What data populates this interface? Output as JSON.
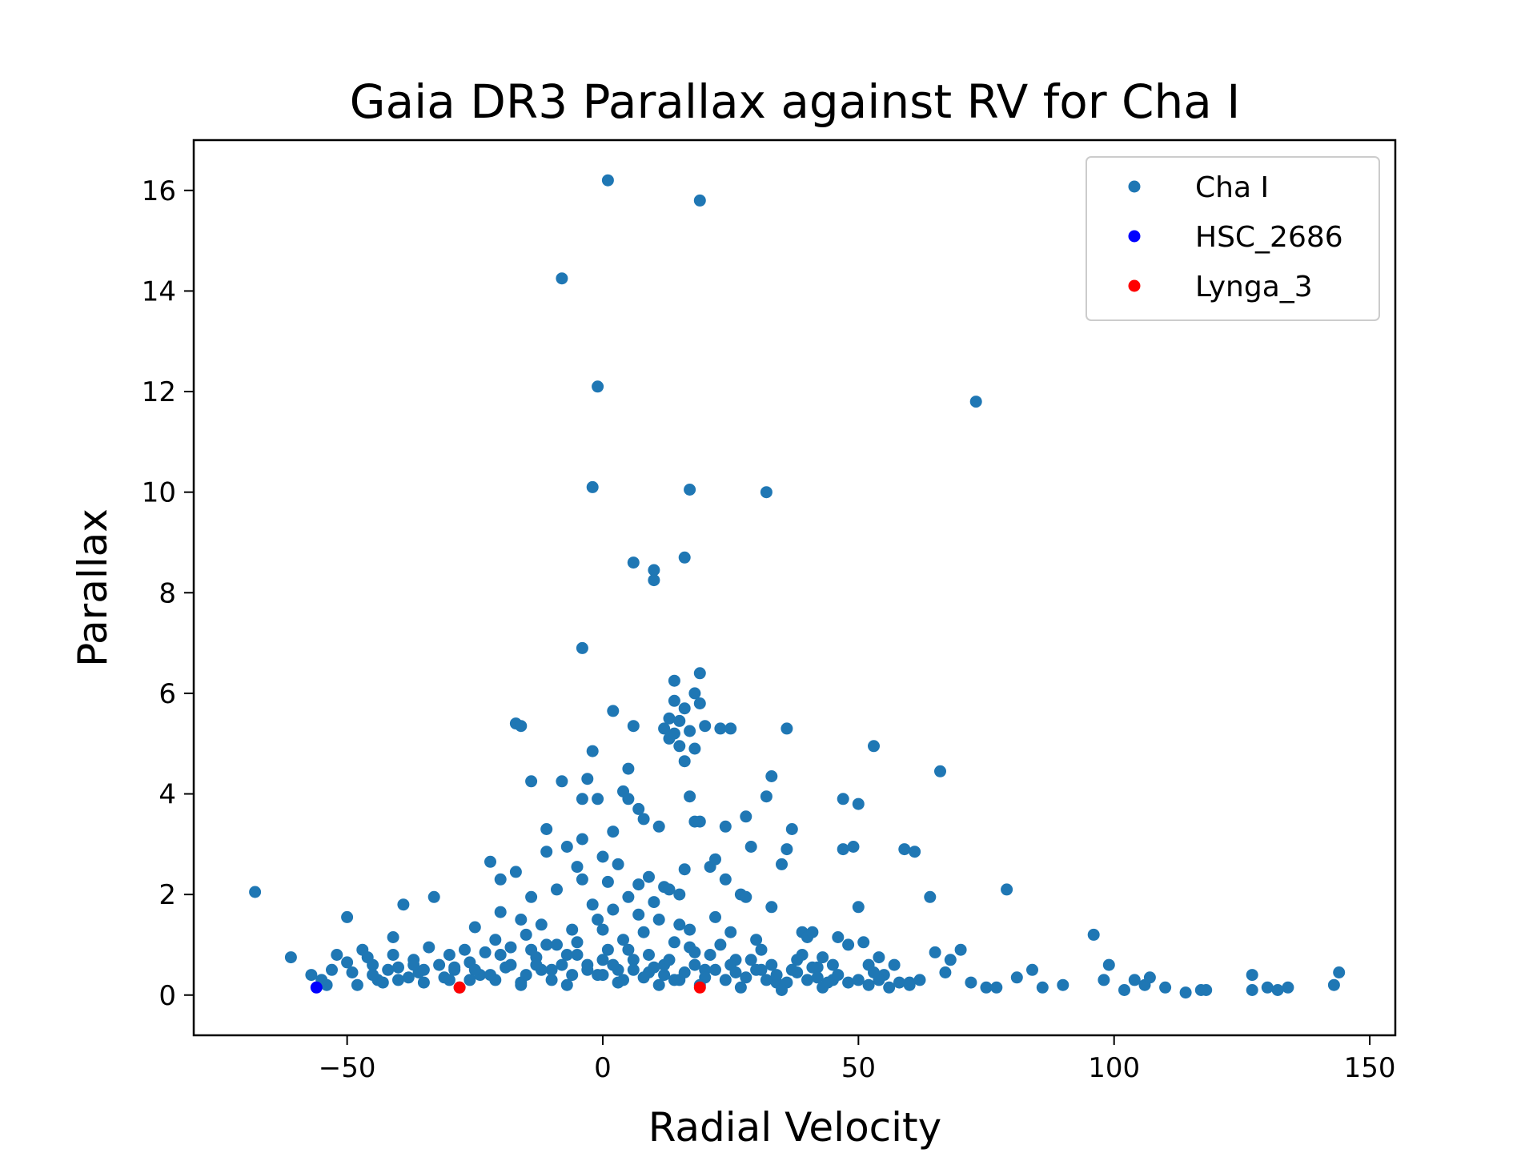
{
  "chart_data": {
    "type": "scatter",
    "title": "Gaia DR3 Parallax against RV for Cha I",
    "xlabel": "Radial Velocity",
    "ylabel": "Parallax",
    "xlim": [
      -80,
      155
    ],
    "ylim": [
      -0.8,
      17
    ],
    "xticks": [
      -50,
      0,
      50,
      100,
      150
    ],
    "xtick_labels": [
      "−50",
      "0",
      "50",
      "100",
      "150"
    ],
    "yticks": [
      0,
      2,
      4,
      6,
      8,
      10,
      12,
      14,
      16
    ],
    "ytick_labels": [
      "0",
      "2",
      "4",
      "6",
      "8",
      "10",
      "12",
      "14",
      "16"
    ],
    "grid": false,
    "legend_position": "top-right",
    "series": [
      {
        "name": "Cha I",
        "color": "#1f77b4",
        "points": [
          [
            -68,
            2.05
          ],
          [
            -61,
            0.75
          ],
          [
            -57,
            0.4
          ],
          [
            -54,
            0.2
          ],
          [
            -53,
            0.5
          ],
          [
            -52,
            0.8
          ],
          [
            -50,
            1.55
          ],
          [
            -50,
            0.65
          ],
          [
            -49,
            0.45
          ],
          [
            -48,
            0.2
          ],
          [
            -47,
            0.9
          ],
          [
            -46,
            0.75
          ],
          [
            -45,
            0.6
          ],
          [
            -44,
            0.3
          ],
          [
            -43,
            0.25
          ],
          [
            -42,
            0.5
          ],
          [
            -41,
            1.15
          ],
          [
            -41,
            0.8
          ],
          [
            -40,
            0.55
          ],
          [
            -39,
            1.8
          ],
          [
            -38,
            0.35
          ],
          [
            -37,
            0.7
          ],
          [
            -36,
            0.45
          ],
          [
            -35,
            0.25
          ],
          [
            -34,
            0.95
          ],
          [
            -33,
            1.95
          ],
          [
            -32,
            0.6
          ],
          [
            -31,
            0.35
          ],
          [
            -30,
            0.8
          ],
          [
            -29,
            0.5
          ],
          [
            -28,
            0.15
          ],
          [
            -27,
            0.9
          ],
          [
            -26,
            0.65
          ],
          [
            -25,
            1.35
          ],
          [
            -24,
            0.4
          ],
          [
            -23,
            0.85
          ],
          [
            -22,
            2.65
          ],
          [
            -21,
            1.1
          ],
          [
            -21,
            0.3
          ],
          [
            -20,
            2.3
          ],
          [
            -20,
            1.65
          ],
          [
            -19,
            0.55
          ],
          [
            -18,
            0.95
          ],
          [
            -17,
            5.4
          ],
          [
            -17,
            2.45
          ],
          [
            -16,
            5.35
          ],
          [
            -16,
            1.5
          ],
          [
            -16,
            0.25
          ],
          [
            -15,
            1.2
          ],
          [
            -14,
            4.25
          ],
          [
            -14,
            1.95
          ],
          [
            -13,
            0.75
          ],
          [
            -12,
            1.4
          ],
          [
            -11,
            3.3
          ],
          [
            -11,
            2.85
          ],
          [
            -11,
            1.0
          ],
          [
            -10,
            0.5
          ],
          [
            -9,
            2.1
          ],
          [
            -8,
            14.25
          ],
          [
            -8,
            4.25
          ],
          [
            -7,
            2.95
          ],
          [
            -7,
            0.8
          ],
          [
            -6,
            1.3
          ],
          [
            -5,
            2.55
          ],
          [
            -5,
            1.05
          ],
          [
            -4,
            6.9
          ],
          [
            -4,
            3.9
          ],
          [
            -4,
            3.1
          ],
          [
            -4,
            2.3
          ],
          [
            -3,
            4.3
          ],
          [
            -3,
            0.6
          ],
          [
            -2,
            10.1
          ],
          [
            -2,
            4.85
          ],
          [
            -2,
            1.8
          ],
          [
            -1,
            12.1
          ],
          [
            -1,
            3.9
          ],
          [
            -1,
            0.4
          ],
          [
            0,
            2.75
          ],
          [
            0,
            1.3
          ],
          [
            1,
            16.2
          ],
          [
            1,
            2.25
          ],
          [
            1,
            0.9
          ],
          [
            2,
            5.65
          ],
          [
            2,
            3.25
          ],
          [
            2,
            1.7
          ],
          [
            3,
            2.6
          ],
          [
            3,
            0.5
          ],
          [
            4,
            4.05
          ],
          [
            4,
            1.1
          ],
          [
            5,
            4.5
          ],
          [
            5,
            3.9
          ],
          [
            5,
            1.95
          ],
          [
            6,
            8.6
          ],
          [
            6,
            5.35
          ],
          [
            6,
            0.7
          ],
          [
            7,
            3.7
          ],
          [
            7,
            2.2
          ],
          [
            8,
            3.5
          ],
          [
            8,
            1.25
          ],
          [
            9,
            2.35
          ],
          [
            9,
            0.45
          ],
          [
            10,
            8.45
          ],
          [
            10,
            8.25
          ],
          [
            10,
            1.85
          ],
          [
            11,
            3.35
          ],
          [
            11,
            1.5
          ],
          [
            12,
            5.3
          ],
          [
            12,
            2.15
          ],
          [
            12,
            0.6
          ],
          [
            13,
            5.5
          ],
          [
            13,
            5.1
          ],
          [
            13,
            2.1
          ],
          [
            14,
            6.25
          ],
          [
            14,
            5.85
          ],
          [
            14,
            5.2
          ],
          [
            14,
            1.05
          ],
          [
            15,
            5.45
          ],
          [
            15,
            4.95
          ],
          [
            15,
            2.0
          ],
          [
            15,
            0.3
          ],
          [
            16,
            8.7
          ],
          [
            16,
            5.7
          ],
          [
            16,
            4.65
          ],
          [
            16,
            2.5
          ],
          [
            17,
            10.05
          ],
          [
            17,
            5.25
          ],
          [
            17,
            3.95
          ],
          [
            17,
            1.3
          ],
          [
            18,
            6.0
          ],
          [
            18,
            4.9
          ],
          [
            18,
            3.45
          ],
          [
            18,
            0.85
          ],
          [
            19,
            15.8
          ],
          [
            19,
            6.4
          ],
          [
            19,
            5.8
          ],
          [
            19,
            3.45
          ],
          [
            20,
            5.35
          ],
          [
            20,
            0.5
          ],
          [
            21,
            2.55
          ],
          [
            22,
            1.55
          ],
          [
            22,
            2.7
          ],
          [
            23,
            5.3
          ],
          [
            24,
            3.35
          ],
          [
            24,
            2.3
          ],
          [
            25,
            5.3
          ],
          [
            25,
            1.25
          ],
          [
            26,
            0.7
          ],
          [
            27,
            2.0
          ],
          [
            28,
            3.55
          ],
          [
            28,
            1.95
          ],
          [
            29,
            2.95
          ],
          [
            30,
            1.1
          ],
          [
            31,
            0.5
          ],
          [
            32,
            10.0
          ],
          [
            32,
            3.95
          ],
          [
            33,
            1.75
          ],
          [
            33,
            4.35
          ],
          [
            34,
            0.25
          ],
          [
            35,
            2.6
          ],
          [
            36,
            5.3
          ],
          [
            36,
            2.9
          ],
          [
            37,
            3.3
          ],
          [
            38,
            0.7
          ],
          [
            39,
            1.25
          ],
          [
            40,
            1.15
          ],
          [
            41,
            1.25
          ],
          [
            42,
            0.55
          ],
          [
            43,
            0.75
          ],
          [
            45,
            0.3
          ],
          [
            46,
            1.15
          ],
          [
            47,
            2.9
          ],
          [
            47,
            3.9
          ],
          [
            48,
            1.0
          ],
          [
            49,
            2.95
          ],
          [
            50,
            3.8
          ],
          [
            50,
            1.75
          ],
          [
            51,
            1.05
          ],
          [
            52,
            0.6
          ],
          [
            53,
            4.95
          ],
          [
            54,
            0.75
          ],
          [
            55,
            0.4
          ],
          [
            57,
            0.6
          ],
          [
            59,
            2.9
          ],
          [
            60,
            0.25
          ],
          [
            61,
            2.85
          ],
          [
            62,
            0.3
          ],
          [
            64,
            1.95
          ],
          [
            65,
            0.85
          ],
          [
            66,
            4.45
          ],
          [
            67,
            0.45
          ],
          [
            68,
            0.7
          ],
          [
            70,
            0.9
          ],
          [
            72,
            0.25
          ],
          [
            73,
            11.8
          ],
          [
            75,
            0.15
          ],
          [
            77,
            0.15
          ],
          [
            79,
            2.1
          ],
          [
            81,
            0.35
          ],
          [
            84,
            0.5
          ],
          [
            86,
            0.15
          ],
          [
            90,
            0.2
          ],
          [
            96,
            1.2
          ],
          [
            98,
            0.3
          ],
          [
            99,
            0.6
          ],
          [
            102,
            0.1
          ],
          [
            104,
            0.3
          ],
          [
            106,
            0.2
          ],
          [
            107,
            0.35
          ],
          [
            110,
            0.15
          ],
          [
            114,
            0.05
          ],
          [
            117,
            0.1
          ],
          [
            118,
            0.1
          ],
          [
            127,
            0.4
          ],
          [
            127,
            0.1
          ],
          [
            130,
            0.15
          ],
          [
            132,
            0.1
          ],
          [
            134,
            0.15
          ],
          [
            143,
            0.2
          ],
          [
            144,
            0.45
          ],
          [
            -55,
            0.3
          ],
          [
            -45,
            0.4
          ],
          [
            -40,
            0.3
          ],
          [
            -35,
            0.5
          ],
          [
            -30,
            0.3
          ],
          [
            -25,
            0.5
          ],
          [
            -22,
            0.4
          ],
          [
            -18,
            0.6
          ],
          [
            -15,
            0.4
          ],
          [
            -12,
            0.5
          ],
          [
            -10,
            0.3
          ],
          [
            -8,
            0.6
          ],
          [
            -6,
            0.4
          ],
          [
            -3,
            0.5
          ],
          [
            0,
            0.4
          ],
          [
            2,
            0.6
          ],
          [
            4,
            0.3
          ],
          [
            6,
            0.5
          ],
          [
            8,
            0.35
          ],
          [
            10,
            0.55
          ],
          [
            12,
            0.4
          ],
          [
            14,
            0.3
          ],
          [
            16,
            0.45
          ],
          [
            20,
            0.35
          ],
          [
            22,
            0.5
          ],
          [
            24,
            0.3
          ],
          [
            26,
            0.45
          ],
          [
            28,
            0.35
          ],
          [
            30,
            0.5
          ],
          [
            32,
            0.3
          ],
          [
            34,
            0.4
          ],
          [
            36,
            0.25
          ],
          [
            38,
            0.45
          ],
          [
            40,
            0.3
          ],
          [
            42,
            0.35
          ],
          [
            44,
            0.25
          ],
          [
            46,
            0.4
          ],
          [
            48,
            0.25
          ],
          [
            50,
            0.3
          ],
          [
            52,
            0.2
          ],
          [
            54,
            0.3
          ],
          [
            56,
            0.15
          ],
          [
            58,
            0.25
          ],
          [
            60,
            0.2
          ],
          [
            -20,
            0.8
          ],
          [
            -14,
            0.9
          ],
          [
            -9,
            1.0
          ],
          [
            -5,
            0.8
          ],
          [
            0,
            0.7
          ],
          [
            5,
            0.9
          ],
          [
            9,
            0.8
          ],
          [
            13,
            0.7
          ],
          [
            18,
            0.6
          ],
          [
            21,
            0.8
          ],
          [
            25,
            0.6
          ],
          [
            29,
            0.7
          ],
          [
            33,
            0.6
          ],
          [
            37,
            0.5
          ],
          [
            -26,
            0.3
          ],
          [
            -16,
            0.2
          ],
          [
            -7,
            0.2
          ],
          [
            3,
            0.25
          ],
          [
            11,
            0.2
          ],
          [
            19,
            0.2
          ],
          [
            27,
            0.15
          ],
          [
            35,
            0.1
          ],
          [
            43,
            0.15
          ],
          [
            -1,
            1.5
          ],
          [
            7,
            1.6
          ],
          [
            15,
            1.4
          ],
          [
            23,
            1.0
          ],
          [
            31,
            0.9
          ],
          [
            -13,
            0.6
          ],
          [
            17,
            0.95
          ],
          [
            41,
            0.55
          ],
          [
            -29,
            0.55
          ],
          [
            -37,
            0.6
          ],
          [
            39,
            0.8
          ],
          [
            45,
            0.6
          ],
          [
            53,
            0.45
          ]
        ]
      },
      {
        "name": "HSC_2686",
        "color": "#0000ff",
        "points": [
          [
            -56,
            0.15
          ]
        ]
      },
      {
        "name": "Lynga_3",
        "color": "#ff0000",
        "points": [
          [
            -28,
            0.15
          ],
          [
            19,
            0.15
          ]
        ]
      }
    ]
  }
}
